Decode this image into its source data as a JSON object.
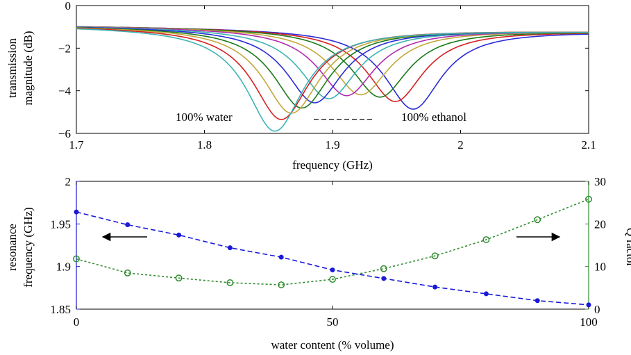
{
  "chart_data": [
    {
      "type": "line",
      "xlabel": "frequency (GHz)",
      "ylabel": [
        "transmission",
        "magnitude (dB)"
      ],
      "xlim": [
        1.7,
        2.1
      ],
      "ylim": [
        -6,
        0
      ],
      "xticks": [
        1.7,
        1.8,
        1.9,
        2.0,
        2.1
      ],
      "xtick_labels": [
        "1.7",
        "1.8",
        "1.9",
        "2",
        "2.1"
      ],
      "yticks": [
        -6,
        -4,
        -2,
        0
      ],
      "ytick_labels": [
        "−6",
        "−4",
        "−2",
        "0"
      ],
      "grid": false,
      "annotations": [
        "100% water",
        "100% ethanol"
      ],
      "baseline_db": -0.95,
      "series": [
        {
          "water_pct": 0,
          "center_ghz": 1.963,
          "min_db": -4.7,
          "color": "#2b2bd9"
        },
        {
          "water_pct": 10,
          "center_ghz": 1.949,
          "min_db": -4.35,
          "color": "#d62020"
        },
        {
          "water_pct": 20,
          "center_ghz": 1.937,
          "min_db": -4.15,
          "color": "#1a7a1a"
        },
        {
          "water_pct": 30,
          "center_ghz": 1.922,
          "min_db": -4.05,
          "color": "#c2a83a"
        },
        {
          "water_pct": 40,
          "center_ghz": 1.911,
          "min_db": -4.1,
          "color": "#b02bb0"
        },
        {
          "water_pct": 50,
          "center_ghz": 1.897,
          "min_db": -4.25,
          "color": "#3cb4b4"
        },
        {
          "water_pct": 60,
          "center_ghz": 1.886,
          "min_db": -4.45,
          "color": "#2b2bd9"
        },
        {
          "water_pct": 70,
          "center_ghz": 1.876,
          "min_db": -4.7,
          "color": "#1a7a1a"
        },
        {
          "water_pct": 80,
          "center_ghz": 1.868,
          "min_db": -4.95,
          "color": "#c2a83a"
        },
        {
          "water_pct": 90,
          "center_ghz": 1.86,
          "min_db": -5.25,
          "color": "#d62020"
        },
        {
          "water_pct": 100,
          "center_ghz": 1.855,
          "min_db": -5.8,
          "color": "#3cb4b4"
        }
      ]
    },
    {
      "type": "line",
      "xlabel": "water content (% volume)",
      "ylabel_left": [
        "resonance",
        "frequency (GHz)"
      ],
      "ylabel_right": "Q factor",
      "xlim": [
        0,
        100
      ],
      "xticks": [
        0,
        50,
        100
      ],
      "ylim_left": [
        1.85,
        2.0
      ],
      "yticks_left": [
        1.85,
        1.9,
        1.95,
        2.0
      ],
      "ytick_labels_left": [
        "1.85",
        "1.9",
        "1.95",
        "2"
      ],
      "ylim_right": [
        0,
        30
      ],
      "yticks_right": [
        0,
        10,
        20,
        30
      ],
      "grid": false,
      "x": [
        0,
        10,
        20,
        30,
        40,
        50,
        60,
        70,
        80,
        90,
        100
      ],
      "series": [
        {
          "axis": "left",
          "color": "#1a1ad9",
          "values": [
            1.964,
            1.949,
            1.937,
            1.922,
            1.911,
            1.896,
            1.886,
            1.876,
            1.868,
            1.86,
            1.855
          ]
        },
        {
          "axis": "right",
          "color": "#2e8b2e",
          "values": [
            11.8,
            8.5,
            7.3,
            6.2,
            5.7,
            7.0,
            9.5,
            12.5,
            16.3,
            21.0,
            25.8
          ]
        }
      ],
      "arrows": [
        "left",
        "right"
      ]
    }
  ]
}
